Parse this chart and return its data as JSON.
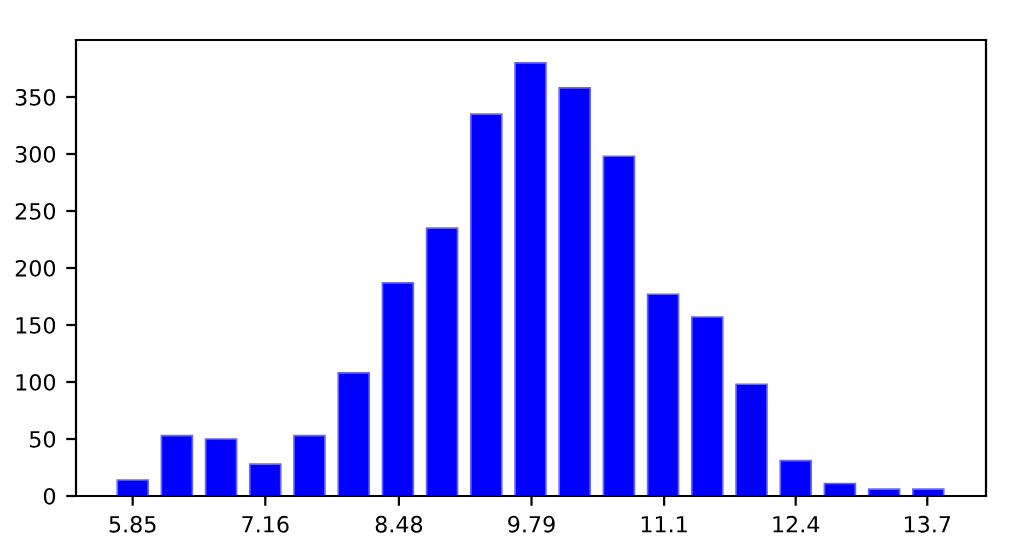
{
  "chart_data": {
    "type": "histogram",
    "color": "#0000ff",
    "bins": [
      5.632,
      6.068,
      6.505,
      6.942,
      7.378,
      7.815,
      8.252,
      8.688,
      9.125,
      9.562,
      9.998,
      10.435,
      10.872,
      11.308,
      11.745,
      12.182,
      12.618,
      13.055,
      13.492,
      13.928
    ],
    "values": [
      14,
      53,
      50,
      28,
      53,
      108,
      187,
      235,
      335,
      380,
      358,
      298,
      177,
      157,
      98,
      31,
      11,
      6,
      6
    ],
    "xlim": [
      5.29,
      14.28
    ],
    "xticks": [
      5.85,
      7.16,
      8.48,
      9.79,
      11.1,
      12.4,
      13.7
    ],
    "ylim": [
      0,
      400
    ],
    "yticks": [
      0,
      50,
      100,
      150,
      200,
      250,
      300,
      350
    ]
  }
}
